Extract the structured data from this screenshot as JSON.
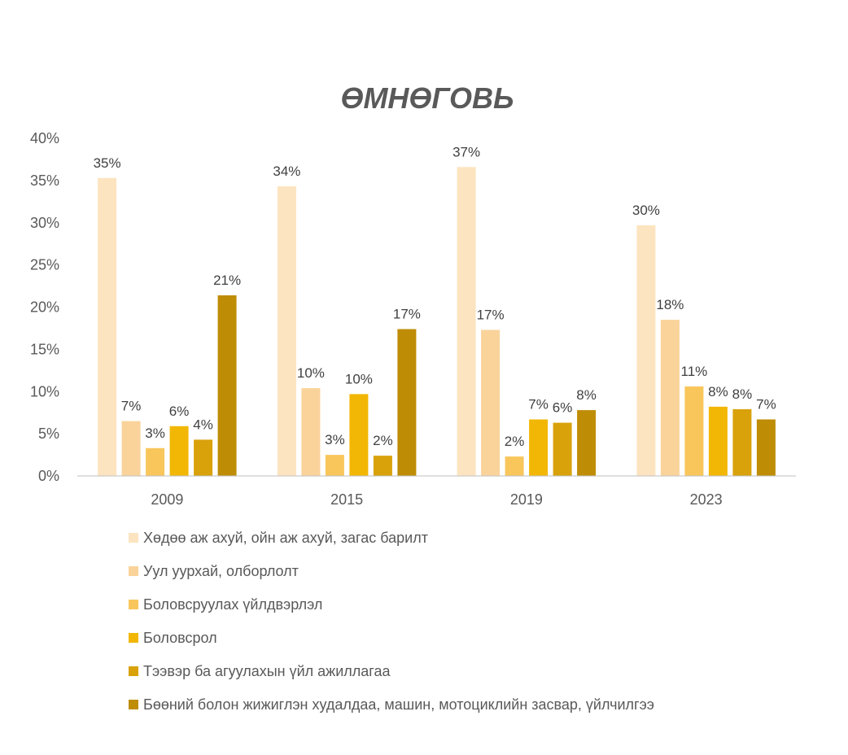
{
  "chart_data": {
    "type": "bar",
    "title": "ӨМНӨГОВЬ",
    "xlabel": "",
    "ylabel": "",
    "ylim": [
      0,
      40
    ],
    "y_ticks": [
      "0%",
      "5%",
      "10%",
      "15%",
      "20%",
      "25%",
      "30%",
      "35%",
      "40%"
    ],
    "grid": false,
    "legend_position": "bottom",
    "categories": [
      "2009",
      "2015",
      "2019",
      "2023"
    ],
    "series": [
      {
        "name": "Хөдөө аж ахуй, ойн аж ахуй, загас барилт",
        "color": "#FCE4C0",
        "values": [
          35.3,
          34.3,
          36.6,
          29.7
        ],
        "labels": [
          "35%",
          "34%",
          "37%",
          "30%"
        ]
      },
      {
        "name": "Уул уурхай, олборлолт",
        "color": "#FAD39B",
        "values": [
          6.5,
          10.4,
          17.3,
          18.5
        ],
        "labels": [
          "7%",
          "10%",
          "17%",
          "18%"
        ]
      },
      {
        "name": "Боловсруулах үйлдвэрлэл",
        "color": "#F9C65C",
        "values": [
          3.3,
          2.5,
          2.3,
          10.6
        ],
        "labels": [
          "3%",
          "3%",
          "2%",
          "11%"
        ]
      },
      {
        "name": "Боловсрол",
        "color": "#F2B705",
        "values": [
          5.9,
          9.7,
          6.7,
          8.2
        ],
        "labels": [
          "6%",
          "10%",
          "7%",
          "8%"
        ]
      },
      {
        "name": "Тээвэр ба агуулахын үйл ажиллагаа",
        "color": "#D9A20B",
        "values": [
          4.3,
          2.4,
          6.3,
          7.9
        ],
        "labels": [
          "4%",
          "2%",
          "6%",
          "8%"
        ]
      },
      {
        "name": "Бөөний болон жижиглэн худалдаа, машин, мотоциклийн засвар, үйлчилгээ",
        "color": "#BF8C06",
        "values": [
          21.4,
          17.4,
          7.8,
          6.7
        ],
        "labels": [
          "21%",
          "17%",
          "8%",
          "7%"
        ]
      }
    ]
  }
}
